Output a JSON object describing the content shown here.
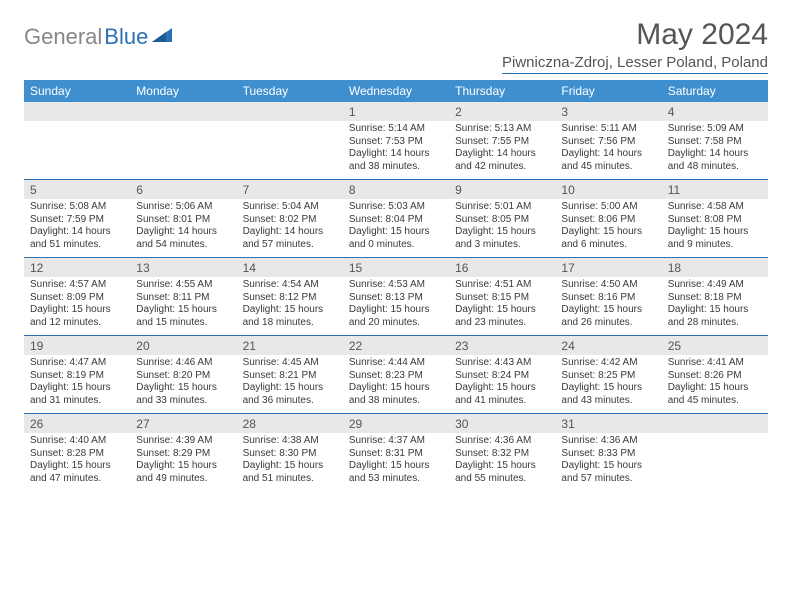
{
  "logo": {
    "gray": "General",
    "blue": "Blue"
  },
  "title": "May 2024",
  "location": "Piwniczna-Zdroj, Lesser Poland, Poland",
  "day_headers": [
    "Sunday",
    "Monday",
    "Tuesday",
    "Wednesday",
    "Thursday",
    "Friday",
    "Saturday"
  ],
  "colors": {
    "header_bg": "#3f8fcf",
    "accent": "#2a72b5",
    "daynum_bg": "#e8e8e8"
  },
  "weeks": [
    [
      {
        "blank": true
      },
      {
        "blank": true
      },
      {
        "blank": true
      },
      {
        "n": "1",
        "sr": "5:14 AM",
        "ss": "7:53 PM",
        "dh": "14",
        "dm": "38"
      },
      {
        "n": "2",
        "sr": "5:13 AM",
        "ss": "7:55 PM",
        "dh": "14",
        "dm": "42"
      },
      {
        "n": "3",
        "sr": "5:11 AM",
        "ss": "7:56 PM",
        "dh": "14",
        "dm": "45"
      },
      {
        "n": "4",
        "sr": "5:09 AM",
        "ss": "7:58 PM",
        "dh": "14",
        "dm": "48"
      }
    ],
    [
      {
        "n": "5",
        "sr": "5:08 AM",
        "ss": "7:59 PM",
        "dh": "14",
        "dm": "51"
      },
      {
        "n": "6",
        "sr": "5:06 AM",
        "ss": "8:01 PM",
        "dh": "14",
        "dm": "54"
      },
      {
        "n": "7",
        "sr": "5:04 AM",
        "ss": "8:02 PM",
        "dh": "14",
        "dm": "57"
      },
      {
        "n": "8",
        "sr": "5:03 AM",
        "ss": "8:04 PM",
        "dh": "15",
        "dm": "0"
      },
      {
        "n": "9",
        "sr": "5:01 AM",
        "ss": "8:05 PM",
        "dh": "15",
        "dm": "3"
      },
      {
        "n": "10",
        "sr": "5:00 AM",
        "ss": "8:06 PM",
        "dh": "15",
        "dm": "6"
      },
      {
        "n": "11",
        "sr": "4:58 AM",
        "ss": "8:08 PM",
        "dh": "15",
        "dm": "9"
      }
    ],
    [
      {
        "n": "12",
        "sr": "4:57 AM",
        "ss": "8:09 PM",
        "dh": "15",
        "dm": "12"
      },
      {
        "n": "13",
        "sr": "4:55 AM",
        "ss": "8:11 PM",
        "dh": "15",
        "dm": "15"
      },
      {
        "n": "14",
        "sr": "4:54 AM",
        "ss": "8:12 PM",
        "dh": "15",
        "dm": "18"
      },
      {
        "n": "15",
        "sr": "4:53 AM",
        "ss": "8:13 PM",
        "dh": "15",
        "dm": "20"
      },
      {
        "n": "16",
        "sr": "4:51 AM",
        "ss": "8:15 PM",
        "dh": "15",
        "dm": "23"
      },
      {
        "n": "17",
        "sr": "4:50 AM",
        "ss": "8:16 PM",
        "dh": "15",
        "dm": "26"
      },
      {
        "n": "18",
        "sr": "4:49 AM",
        "ss": "8:18 PM",
        "dh": "15",
        "dm": "28"
      }
    ],
    [
      {
        "n": "19",
        "sr": "4:47 AM",
        "ss": "8:19 PM",
        "dh": "15",
        "dm": "31"
      },
      {
        "n": "20",
        "sr": "4:46 AM",
        "ss": "8:20 PM",
        "dh": "15",
        "dm": "33"
      },
      {
        "n": "21",
        "sr": "4:45 AM",
        "ss": "8:21 PM",
        "dh": "15",
        "dm": "36"
      },
      {
        "n": "22",
        "sr": "4:44 AM",
        "ss": "8:23 PM",
        "dh": "15",
        "dm": "38"
      },
      {
        "n": "23",
        "sr": "4:43 AM",
        "ss": "8:24 PM",
        "dh": "15",
        "dm": "41"
      },
      {
        "n": "24",
        "sr": "4:42 AM",
        "ss": "8:25 PM",
        "dh": "15",
        "dm": "43"
      },
      {
        "n": "25",
        "sr": "4:41 AM",
        "ss": "8:26 PM",
        "dh": "15",
        "dm": "45"
      }
    ],
    [
      {
        "n": "26",
        "sr": "4:40 AM",
        "ss": "8:28 PM",
        "dh": "15",
        "dm": "47"
      },
      {
        "n": "27",
        "sr": "4:39 AM",
        "ss": "8:29 PM",
        "dh": "15",
        "dm": "49"
      },
      {
        "n": "28",
        "sr": "4:38 AM",
        "ss": "8:30 PM",
        "dh": "15",
        "dm": "51"
      },
      {
        "n": "29",
        "sr": "4:37 AM",
        "ss": "8:31 PM",
        "dh": "15",
        "dm": "53"
      },
      {
        "n": "30",
        "sr": "4:36 AM",
        "ss": "8:32 PM",
        "dh": "15",
        "dm": "55"
      },
      {
        "n": "31",
        "sr": "4:36 AM",
        "ss": "8:33 PM",
        "dh": "15",
        "dm": "57"
      },
      {
        "blank": true
      }
    ]
  ]
}
